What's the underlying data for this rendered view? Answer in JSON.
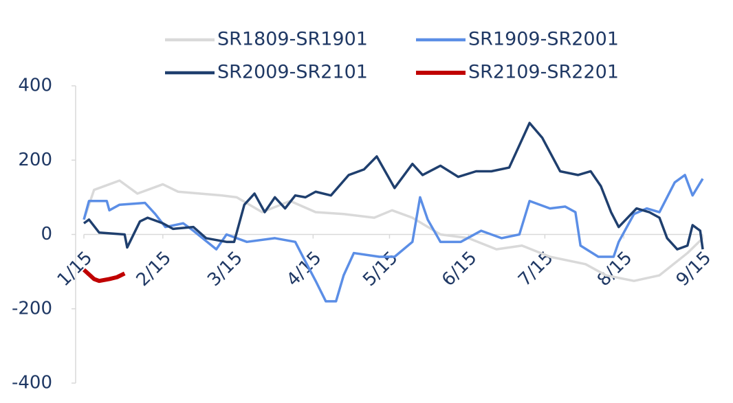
{
  "chart_data": {
    "type": "line",
    "xlim": [
      0,
      243
    ],
    "xticks": [
      {
        "value": 0,
        "label": "1/15"
      },
      {
        "value": 31,
        "label": "2/15"
      },
      {
        "value": 59,
        "label": "3/15"
      },
      {
        "value": 90,
        "label": "4/15"
      },
      {
        "value": 120,
        "label": "5/15"
      },
      {
        "value": 151,
        "label": "6/15"
      },
      {
        "value": 181,
        "label": "7/15"
      },
      {
        "value": 212,
        "label": "8/15"
      },
      {
        "value": 243,
        "label": "9/15"
      }
    ],
    "ylim": [
      -400,
      400
    ],
    "yticks": [
      -400,
      -200,
      0,
      200,
      400
    ],
    "series": [
      {
        "name": "SR1809-SR1901",
        "color": "#d9d9d9",
        "x": [
          0,
          4,
          14,
          21,
          31,
          37,
          54,
          60,
          70,
          81,
          91,
          102,
          114,
          121,
          129,
          140,
          151,
          162,
          172,
          183,
          197,
          205,
          216,
          226,
          237,
          243
        ],
        "values": [
          40,
          120,
          145,
          110,
          135,
          115,
          105,
          100,
          60,
          90,
          60,
          55,
          45,
          65,
          45,
          0,
          -10,
          -40,
          -30,
          -60,
          -80,
          -110,
          -125,
          -110,
          -50,
          -10
        ]
      },
      {
        "name": "SR1909-SR2001",
        "color": "#5b8ee6",
        "x": [
          0,
          2,
          9,
          10,
          14,
          24,
          28,
          32,
          39,
          43,
          52,
          56,
          64,
          75,
          83,
          86,
          91,
          95,
          99,
          102,
          106,
          116,
          122,
          129,
          132,
          135,
          140,
          148,
          156,
          164,
          171,
          175,
          183,
          189,
          193,
          195,
          202,
          208,
          210,
          216,
          221,
          226,
          232,
          236,
          239,
          243
        ],
        "values": [
          40,
          90,
          90,
          65,
          80,
          85,
          55,
          20,
          30,
          10,
          -40,
          0,
          -20,
          -10,
          -20,
          -60,
          -125,
          -180,
          -180,
          -110,
          -50,
          -60,
          -60,
          -20,
          100,
          40,
          -20,
          -20,
          10,
          -10,
          0,
          90,
          70,
          75,
          60,
          -30,
          -60,
          -60,
          -20,
          55,
          70,
          60,
          140,
          160,
          105,
          150
        ]
      },
      {
        "name": "SR2009-SR2101",
        "color": "#1f3f6e",
        "x": [
          0,
          2,
          6,
          16,
          17,
          22,
          25,
          31,
          35,
          43,
          48,
          56,
          59,
          63,
          67,
          71,
          75,
          79,
          83,
          87,
          91,
          97,
          104,
          110,
          115,
          122,
          129,
          133,
          140,
          147,
          154,
          160,
          167,
          175,
          180,
          187,
          194,
          199,
          203,
          207,
          210,
          217,
          222,
          226,
          229,
          233,
          237,
          239,
          242,
          243
        ],
        "values": [
          30,
          40,
          5,
          0,
          -35,
          35,
          45,
          30,
          15,
          20,
          -10,
          -20,
          -20,
          80,
          110,
          60,
          100,
          70,
          105,
          100,
          115,
          105,
          160,
          175,
          210,
          125,
          190,
          160,
          185,
          155,
          170,
          170,
          180,
          300,
          260,
          170,
          160,
          170,
          130,
          60,
          20,
          70,
          60,
          45,
          -10,
          -40,
          -30,
          25,
          10,
          -40
        ]
      },
      {
        "name": "SR2109-SR2201",
        "color": "#c00000",
        "x": [
          0,
          4,
          6,
          10,
          13,
          16
        ],
        "values": [
          -95,
          -120,
          -125,
          -120,
          -115,
          -105
        ]
      }
    ]
  }
}
